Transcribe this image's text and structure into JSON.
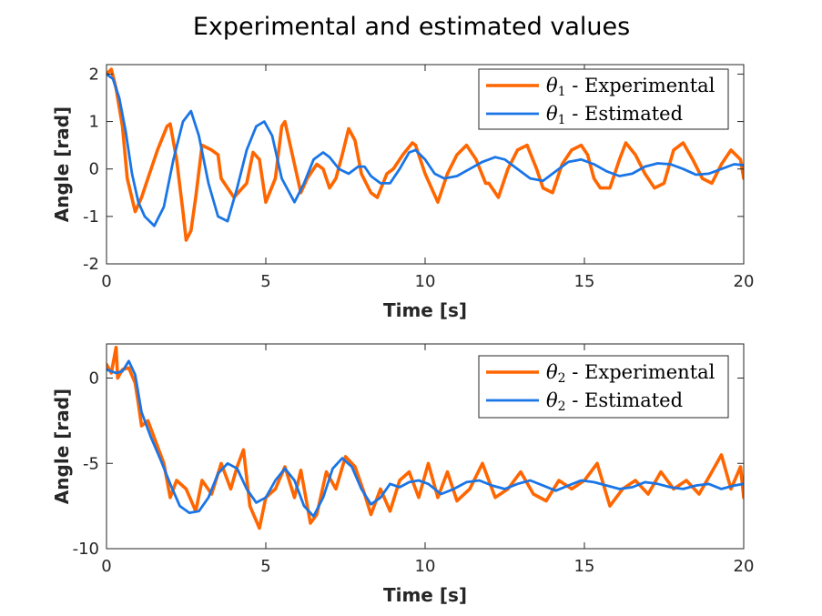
{
  "figure_title": "Experimental and estimated values",
  "colors": {
    "experimental": "#FF6600",
    "estimated": "#1A75E6",
    "axis": "#262626"
  },
  "chart_data": [
    {
      "type": "line",
      "title": "Experimental and estimated values",
      "xlabel": "Time [s]",
      "ylabel": "Angle [rad]",
      "xlim": [
        0,
        20
      ],
      "ylim": [
        -2,
        2.2
      ],
      "xticks": [
        "0",
        "5",
        "10",
        "15",
        "20"
      ],
      "yticks": [
        "-2",
        "-1",
        "0",
        "1",
        "2"
      ],
      "legend_position": "top-right",
      "grid": false,
      "series": [
        {
          "name": "θ1 - Experimental",
          "legend_main": "θ",
          "legend_sub": "1",
          "legend_rest": " - Experimental",
          "color": "#FF6600",
          "x": [
            0,
            0.15,
            0.3,
            0.5,
            0.65,
            0.9,
            1.1,
            1.3,
            1.6,
            1.9,
            2.0,
            2.2,
            2.4,
            2.5,
            2.65,
            2.8,
            3.0,
            3.3,
            3.5,
            3.6,
            4.0,
            4.4,
            4.6,
            4.8,
            5.0,
            5.3,
            5.5,
            5.6,
            5.9,
            6.1,
            6.3,
            6.6,
            6.8,
            7.0,
            7.2,
            7.4,
            7.6,
            7.8,
            8.0,
            8.3,
            8.5,
            8.8,
            9.0,
            9.3,
            9.6,
            9.7,
            10.0,
            10.2,
            10.4,
            10.7,
            11.0,
            11.3,
            11.6,
            11.9,
            12.0,
            12.3,
            12.6,
            12.9,
            13.2,
            13.5,
            13.7,
            14.0,
            14.3,
            14.6,
            14.9,
            15.1,
            15.3,
            15.5,
            15.8,
            16.1,
            16.3,
            16.6,
            16.9,
            17.2,
            17.5,
            17.8,
            18.1,
            18.4,
            18.7,
            19.0,
            19.3,
            19.6,
            19.9,
            20.0
          ],
          "y": [
            2.0,
            2.1,
            1.7,
            0.9,
            -0.2,
            -0.9,
            -0.6,
            -0.2,
            0.4,
            0.9,
            0.95,
            0.2,
            -0.9,
            -1.5,
            -1.3,
            -0.6,
            0.5,
            0.4,
            0.3,
            -0.2,
            -0.6,
            -0.3,
            0.35,
            0.2,
            -0.7,
            -0.2,
            0.9,
            1.0,
            0.1,
            -0.5,
            -0.2,
            0.1,
            0.0,
            -0.4,
            -0.2,
            0.3,
            0.85,
            0.6,
            -0.1,
            -0.5,
            -0.6,
            -0.1,
            0.0,
            0.3,
            0.55,
            0.5,
            -0.1,
            -0.4,
            -0.7,
            -0.1,
            0.3,
            0.5,
            0.2,
            -0.3,
            -0.3,
            -0.6,
            0.0,
            0.4,
            0.5,
            0.0,
            -0.4,
            -0.5,
            0.1,
            0.4,
            0.5,
            0.3,
            -0.2,
            -0.4,
            -0.4,
            0.2,
            0.55,
            0.3,
            -0.1,
            -0.4,
            -0.3,
            0.4,
            0.55,
            0.2,
            -0.2,
            -0.3,
            0.1,
            0.4,
            0.2,
            -0.2
          ]
        },
        {
          "name": "θ1 - Estimated",
          "legend_main": "θ",
          "legend_sub": "1",
          "legend_rest": " - Estimated",
          "color": "#1A75E6",
          "x": [
            0,
            0.2,
            0.4,
            0.6,
            0.8,
            1.0,
            1.2,
            1.5,
            1.8,
            2.1,
            2.4,
            2.65,
            2.9,
            3.2,
            3.5,
            3.8,
            4.1,
            4.4,
            4.7,
            4.95,
            5.2,
            5.5,
            5.9,
            6.2,
            6.5,
            6.8,
            7.0,
            7.3,
            7.6,
            7.9,
            8.1,
            8.3,
            8.6,
            8.9,
            9.2,
            9.5,
            9.7,
            10.0,
            10.3,
            10.6,
            11.0,
            11.4,
            11.8,
            12.2,
            12.5,
            12.9,
            13.3,
            13.7,
            14.1,
            14.5,
            14.9,
            15.3,
            15.7,
            16.1,
            16.5,
            16.9,
            17.3,
            17.7,
            18.1,
            18.5,
            18.9,
            19.3,
            19.7,
            20.0
          ],
          "y": [
            2.0,
            1.9,
            1.5,
            0.8,
            -0.1,
            -0.7,
            -1.0,
            -1.2,
            -0.8,
            0.2,
            1.0,
            1.22,
            0.7,
            -0.3,
            -1.0,
            -1.1,
            -0.4,
            0.4,
            0.9,
            1.0,
            0.7,
            -0.2,
            -0.7,
            -0.3,
            0.2,
            0.35,
            0.25,
            0.0,
            -0.1,
            0.05,
            0.05,
            -0.15,
            -0.3,
            -0.3,
            0.0,
            0.35,
            0.4,
            0.2,
            -0.1,
            -0.2,
            -0.15,
            0.0,
            0.15,
            0.25,
            0.2,
            0.0,
            -0.2,
            -0.25,
            -0.05,
            0.15,
            0.2,
            0.1,
            -0.05,
            -0.15,
            -0.1,
            0.05,
            0.12,
            0.1,
            0.0,
            -0.12,
            -0.1,
            0.0,
            0.1,
            0.08
          ]
        }
      ]
    },
    {
      "type": "line",
      "title": "",
      "xlabel": "Time [s]",
      "ylabel": "Angle [rad]",
      "xlim": [
        0,
        20
      ],
      "ylim": [
        -10,
        2
      ],
      "xticks": [
        "0",
        "5",
        "10",
        "15",
        "20"
      ],
      "yticks": [
        "-10",
        "-5",
        "0"
      ],
      "legend_position": "top-right",
      "grid": false,
      "series": [
        {
          "name": "θ2 - Experimental",
          "legend_main": "θ",
          "legend_sub": "2",
          "legend_rest": " - Experimental",
          "color": "#FF6600",
          "x": [
            0,
            0.15,
            0.3,
            0.35,
            0.5,
            0.7,
            0.9,
            1.0,
            1.1,
            1.3,
            1.5,
            1.8,
            2.0,
            2.2,
            2.5,
            2.8,
            3.0,
            3.3,
            3.6,
            3.9,
            4.1,
            4.3,
            4.5,
            4.8,
            5.0,
            5.3,
            5.6,
            5.9,
            6.1,
            6.4,
            6.6,
            6.9,
            7.2,
            7.5,
            7.8,
            8.1,
            8.3,
            8.6,
            8.9,
            9.2,
            9.5,
            9.8,
            10.1,
            10.4,
            10.7,
            11.0,
            11.4,
            11.8,
            12.2,
            12.6,
            13.0,
            13.4,
            13.8,
            14.2,
            14.6,
            15.0,
            15.4,
            15.8,
            16.2,
            16.6,
            17.0,
            17.4,
            17.8,
            18.2,
            18.6,
            19.0,
            19.3,
            19.6,
            19.9,
            20.0
          ],
          "y": [
            0.8,
            0.3,
            1.8,
            0.0,
            0.5,
            0.6,
            -0.3,
            -1.5,
            -2.8,
            -2.5,
            -3.5,
            -5.0,
            -7.0,
            -6.0,
            -6.5,
            -7.8,
            -6.0,
            -6.8,
            -5.0,
            -6.5,
            -5.2,
            -4.2,
            -7.5,
            -8.8,
            -7.0,
            -6.5,
            -5.2,
            -7.0,
            -5.4,
            -8.5,
            -8.0,
            -5.5,
            -6.5,
            -4.6,
            -5.2,
            -6.8,
            -8.0,
            -6.5,
            -7.8,
            -6.0,
            -5.5,
            -7.0,
            -5.0,
            -7.0,
            -5.5,
            -7.2,
            -6.5,
            -5.0,
            -7.0,
            -6.5,
            -5.5,
            -6.8,
            -7.2,
            -6.0,
            -6.5,
            -6.0,
            -5.0,
            -7.5,
            -6.5,
            -6.0,
            -6.8,
            -5.5,
            -6.5,
            -6.0,
            -6.8,
            -5.5,
            -4.5,
            -6.5,
            -5.2,
            -7.0
          ]
        },
        {
          "name": "θ2 - Estimated",
          "legend_main": "θ",
          "legend_sub": "2",
          "legend_rest": " - Estimated",
          "color": "#1A75E6",
          "x": [
            0,
            0.3,
            0.5,
            0.7,
            0.9,
            1.1,
            1.4,
            1.7,
            2.0,
            2.3,
            2.6,
            2.9,
            3.2,
            3.5,
            3.8,
            4.1,
            4.4,
            4.7,
            5.0,
            5.3,
            5.6,
            5.9,
            6.2,
            6.5,
            6.8,
            7.1,
            7.4,
            7.7,
            8.0,
            8.3,
            8.6,
            8.9,
            9.2,
            9.5,
            9.8,
            10.1,
            10.5,
            10.9,
            11.3,
            11.7,
            12.1,
            12.5,
            12.9,
            13.3,
            13.7,
            14.1,
            14.5,
            14.9,
            15.3,
            15.7,
            16.1,
            16.5,
            16.9,
            17.3,
            17.7,
            18.1,
            18.5,
            18.9,
            19.3,
            19.7,
            20.0
          ],
          "y": [
            0.5,
            0.3,
            0.4,
            1.0,
            0.2,
            -2.0,
            -3.5,
            -4.8,
            -6.2,
            -7.5,
            -7.9,
            -7.8,
            -7.0,
            -5.6,
            -5.0,
            -5.3,
            -6.5,
            -7.3,
            -7.0,
            -6.0,
            -5.3,
            -6.0,
            -7.5,
            -8.1,
            -7.0,
            -5.3,
            -4.7,
            -5.2,
            -6.5,
            -7.4,
            -7.0,
            -6.2,
            -6.4,
            -6.1,
            -6.0,
            -6.2,
            -6.8,
            -6.5,
            -6.1,
            -6.0,
            -6.3,
            -6.5,
            -6.2,
            -6.0,
            -6.3,
            -6.6,
            -6.3,
            -6.0,
            -6.1,
            -6.3,
            -6.5,
            -6.4,
            -6.1,
            -6.2,
            -6.4,
            -6.5,
            -6.3,
            -6.2,
            -6.5,
            -6.3,
            -6.2
          ]
        }
      ]
    }
  ]
}
